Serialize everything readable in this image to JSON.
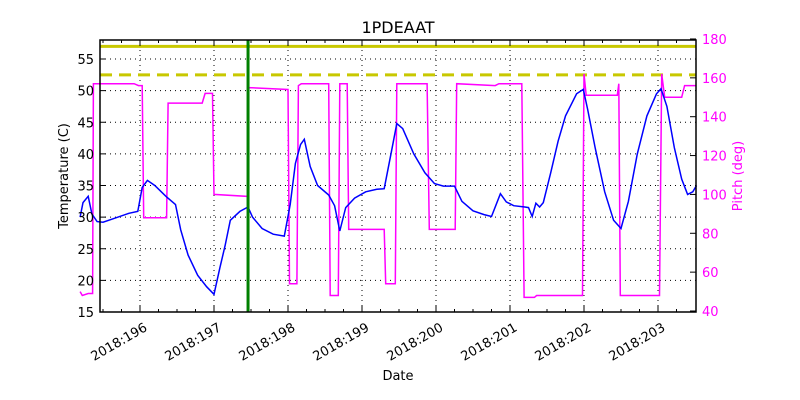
{
  "chart_data": {
    "type": "line",
    "title": "1PDEAAT",
    "xlabel": "Date",
    "ylabel": "Temperature (C)",
    "y2label": "Pitch (deg)",
    "xlim_days": [
      195.19,
      203.24
    ],
    "ylim": [
      15,
      58
    ],
    "y2lim": [
      40,
      180
    ],
    "x_ticks": [
      "2018:196",
      "2018:197",
      "2018:198",
      "2018:199",
      "2018:200",
      "2018:201",
      "2018:202",
      "2018:203"
    ],
    "x_tick_days": [
      196,
      197,
      198,
      199,
      200,
      201,
      202,
      203
    ],
    "y_ticks": [
      15,
      20,
      25,
      30,
      35,
      40,
      45,
      50,
      55
    ],
    "y2_ticks": [
      40,
      60,
      80,
      100,
      120,
      140,
      160,
      180
    ],
    "grid": true,
    "reference_lines": [
      {
        "name": "planning limit (solid)",
        "axis": "left",
        "value": 57.0,
        "color": "#c8c800",
        "style": "solid"
      },
      {
        "name": "caution limit (dashed)",
        "axis": "left",
        "value": 52.5,
        "color": "#c8c800",
        "style": "dashed"
      },
      {
        "name": "current time marker",
        "axis": "x",
        "value_day": 197.46,
        "color": "#008000",
        "style": "solid"
      }
    ],
    "series": [
      {
        "name": "Temperature",
        "axis": "left",
        "color": "#0000ff",
        "points": [
          [
            195.19,
            30.0
          ],
          [
            195.23,
            32.3
          ],
          [
            195.3,
            33.3
          ],
          [
            195.35,
            30.5
          ],
          [
            195.42,
            29.3
          ],
          [
            195.5,
            29.2
          ],
          [
            195.65,
            29.8
          ],
          [
            195.85,
            30.6
          ],
          [
            195.97,
            30.9
          ],
          [
            196.03,
            34.7
          ],
          [
            196.1,
            35.8
          ],
          [
            196.2,
            35.0
          ],
          [
            196.35,
            33.3
          ],
          [
            196.48,
            32.0
          ],
          [
            196.55,
            28.0
          ],
          [
            196.65,
            24.0
          ],
          [
            196.78,
            20.8
          ],
          [
            196.9,
            19.0
          ],
          [
            197.0,
            17.8
          ],
          [
            197.08,
            22.0
          ],
          [
            197.15,
            25.5
          ],
          [
            197.22,
            29.5
          ],
          [
            197.35,
            30.9
          ],
          [
            197.46,
            31.6
          ],
          [
            197.52,
            30.0
          ],
          [
            197.65,
            28.2
          ],
          [
            197.8,
            27.3
          ],
          [
            197.95,
            27.0
          ],
          [
            198.03,
            32.0
          ],
          [
            198.1,
            38.5
          ],
          [
            198.17,
            41.5
          ],
          [
            198.22,
            42.3
          ],
          [
            198.3,
            38.0
          ],
          [
            198.4,
            35.0
          ],
          [
            198.55,
            33.5
          ],
          [
            198.63,
            31.8
          ],
          [
            198.7,
            27.8
          ],
          [
            198.78,
            31.5
          ],
          [
            198.9,
            33.0
          ],
          [
            199.05,
            34.0
          ],
          [
            199.2,
            34.4
          ],
          [
            199.3,
            34.5
          ],
          [
            199.4,
            40.5
          ],
          [
            199.47,
            44.8
          ],
          [
            199.55,
            44.0
          ],
          [
            199.7,
            40.0
          ],
          [
            199.85,
            37.0
          ],
          [
            199.98,
            35.3
          ],
          [
            200.1,
            34.9
          ],
          [
            200.25,
            34.9
          ],
          [
            200.35,
            32.5
          ],
          [
            200.5,
            31.0
          ],
          [
            200.65,
            30.4
          ],
          [
            200.75,
            30.1
          ],
          [
            200.87,
            33.7
          ],
          [
            200.95,
            32.4
          ],
          [
            201.05,
            31.8
          ],
          [
            201.2,
            31.6
          ],
          [
            201.25,
            31.5
          ],
          [
            201.3,
            30.1
          ],
          [
            201.35,
            32.2
          ],
          [
            201.4,
            31.6
          ],
          [
            201.45,
            32.3
          ],
          [
            201.55,
            37.0
          ],
          [
            201.65,
            42.0
          ],
          [
            201.75,
            46.0
          ],
          [
            201.9,
            49.5
          ],
          [
            201.99,
            50.2
          ],
          [
            202.05,
            47.0
          ],
          [
            202.15,
            41.0
          ],
          [
            202.28,
            34.0
          ],
          [
            202.4,
            29.5
          ],
          [
            202.5,
            28.2
          ],
          [
            202.6,
            32.5
          ],
          [
            202.72,
            40.0
          ],
          [
            202.85,
            46.0
          ],
          [
            202.98,
            49.5
          ],
          [
            203.04,
            50.3
          ],
          [
            203.12,
            47.5
          ],
          [
            203.22,
            41.0
          ],
          [
            203.32,
            36.0
          ],
          [
            203.4,
            33.6
          ],
          [
            203.47,
            34.0
          ],
          [
            203.52,
            35.0
          ]
        ]
      },
      {
        "name": "Pitch",
        "axis": "right",
        "color": "#ff00ff",
        "points": [
          [
            195.19,
            50
          ],
          [
            195.22,
            48
          ],
          [
            195.3,
            49
          ],
          [
            195.36,
            49
          ],
          [
            195.37,
            157
          ],
          [
            195.92,
            157
          ],
          [
            195.98,
            156
          ],
          [
            196.03,
            156
          ],
          [
            196.05,
            88
          ],
          [
            196.36,
            88
          ],
          [
            196.38,
            147
          ],
          [
            196.8,
            147
          ],
          [
            196.84,
            147
          ],
          [
            196.88,
            152
          ],
          [
            196.98,
            152
          ],
          [
            197.0,
            100
          ],
          [
            197.46,
            99
          ],
          [
            197.47,
            155
          ],
          [
            198.0,
            154
          ],
          [
            198.02,
            54
          ],
          [
            198.12,
            54
          ],
          [
            198.14,
            156
          ],
          [
            198.18,
            157
          ],
          [
            198.55,
            157
          ],
          [
            198.57,
            48
          ],
          [
            198.68,
            48
          ],
          [
            198.7,
            157
          ],
          [
            198.8,
            157
          ],
          [
            198.82,
            82
          ],
          [
            199.3,
            82
          ],
          [
            199.32,
            54
          ],
          [
            199.45,
            54
          ],
          [
            199.47,
            157
          ],
          [
            199.88,
            157
          ],
          [
            199.91,
            82
          ],
          [
            200.26,
            82
          ],
          [
            200.28,
            157
          ],
          [
            200.8,
            156
          ],
          [
            200.85,
            157
          ],
          [
            201.16,
            157
          ],
          [
            201.19,
            47
          ],
          [
            201.33,
            47
          ],
          [
            201.36,
            48
          ],
          [
            201.95,
            48
          ],
          [
            201.98,
            48
          ],
          [
            202.0,
            162
          ],
          [
            202.03,
            151
          ],
          [
            202.45,
            151
          ],
          [
            202.47,
            157
          ],
          [
            202.49,
            48
          ],
          [
            203.02,
            48
          ],
          [
            203.05,
            162
          ],
          [
            203.09,
            150
          ],
          [
            203.32,
            150
          ],
          [
            203.36,
            156
          ],
          [
            203.52,
            156
          ]
        ]
      }
    ]
  }
}
